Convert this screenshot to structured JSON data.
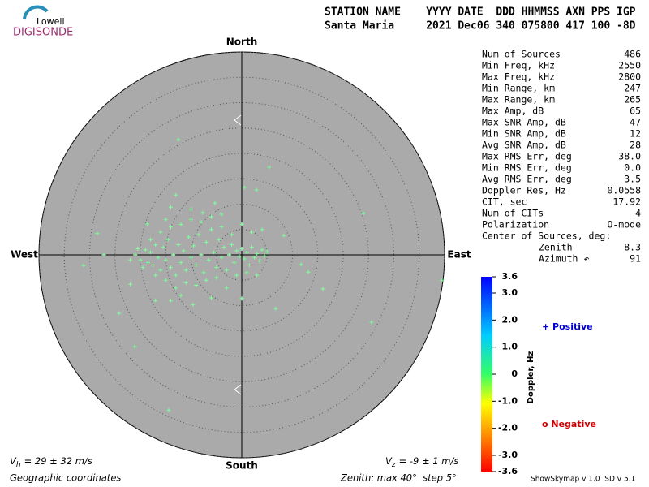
{
  "logo": {
    "top": "Lowell",
    "bottom": "DIGISONDE"
  },
  "header": {
    "line1": "STATION NAME    YYYY DATE  DDD HHMMSS AXN PPS IGP",
    "line2": "Santa Maria     2021 Dec06 340 075800 417 100 -8D"
  },
  "stats": {
    "rows": [
      [
        "Num of Sources",
        "486"
      ],
      [
        "Min Freq, kHz",
        "2550"
      ],
      [
        "Max Freq, kHz",
        "2800"
      ],
      [
        "Min Range, km",
        "247"
      ],
      [
        "Max Range, km",
        "265"
      ],
      [
        "Max Amp, dB",
        "65"
      ],
      [
        "Max SNR Amp, dB",
        "47"
      ],
      [
        "Min SNR Amp, dB",
        "12"
      ],
      [
        "Avg SNR Amp, dB",
        "28"
      ],
      [
        "Max RMS Err, deg",
        "38.0"
      ],
      [
        "Min RMS Err, deg",
        "0.0"
      ],
      [
        "Avg RMS Err, deg",
        "3.5"
      ],
      [
        "Doppler Res, Hz",
        "0.0558"
      ],
      [
        "CIT, sec",
        "17.92"
      ],
      [
        "Num of CITs",
        "4"
      ],
      [
        "Polarization",
        "O-mode"
      ]
    ],
    "center_title": "Center of Sources, deg:",
    "center_rows": [
      [
        "Zenith",
        "8.3"
      ],
      [
        "Azimuth ↶",
        "91"
      ]
    ]
  },
  "legend": {
    "positive": "+ Positive",
    "negative": "o Negative"
  },
  "footer": {
    "vh": {
      "symbol": "V",
      "sub": "h",
      "text": "= 29 ± 32 m/s"
    },
    "vz": {
      "symbol": "V",
      "sub": "z",
      "text": "= -9 ± 1 m/s"
    },
    "coords": "Geographic coordinates",
    "zenith": "Zenith: max 40°  step 5°",
    "version": "ShowSkymap v 1.0  SD v 5.1"
  },
  "chart_data": {
    "type": "skymap",
    "directions": {
      "north": "North",
      "south": "South",
      "west": "West",
      "east": "East"
    },
    "rlim": [
      0,
      40
    ],
    "rings": [
      5,
      10,
      15,
      20,
      25,
      30,
      35,
      40
    ],
    "color": "#7dff9a",
    "x": [
      -12.5,
      5.4,
      0.5,
      2.9,
      24,
      -28.5,
      -31.2,
      39.5,
      25.6,
      -24.2,
      -21.1,
      -14.4,
      0,
      16,
      11.7,
      13.1,
      -13,
      -14,
      -5.3,
      -7.7,
      -27.2,
      -18.6,
      -22,
      6.7,
      -9.6,
      -17,
      8.3,
      4,
      -19,
      -18.5,
      -18,
      -17.5,
      -17,
      -16.5,
      -16,
      -15.5,
      -15,
      -14.5,
      -14,
      -13.5,
      -13,
      -12.5,
      -12,
      -11.5,
      -11,
      -10.5,
      -10,
      -9.5,
      -9,
      -8.5,
      -8,
      -7.5,
      -7,
      -6.5,
      -6,
      -5.5,
      -5,
      -4.5,
      -4,
      -3.5,
      -3,
      -2.5,
      -2,
      -1.5,
      -1,
      -0.5,
      0,
      0.5,
      1,
      1.5,
      2,
      2.5,
      3,
      3.5,
      4,
      4.5,
      5,
      -20,
      -21,
      -22,
      -20.5,
      -19.5,
      -18,
      -17,
      -16,
      -15,
      -14,
      -13,
      -12,
      -11,
      -10,
      -9,
      -8,
      -7,
      -6,
      -5,
      -4,
      -3,
      -2,
      -1,
      0,
      1,
      2,
      3,
      -12,
      -14,
      -6,
      -4,
      -10,
      -15
    ],
    "y": [
      22.7,
      17.3,
      13.3,
      12.8,
      8.2,
      4.2,
      -2.1,
      -5,
      -13.3,
      -11.5,
      -18.1,
      -30.6,
      -8.6,
      -6.7,
      -1.9,
      -3.4,
      11.8,
      9.4,
      10.2,
      8.3,
      0,
      6.1,
      -5.8,
      -10.6,
      -9.8,
      -9,
      3.8,
      5,
      1,
      -1.5,
      0.5,
      -2,
      2,
      -0.5,
      -3,
      1.5,
      -1,
      3,
      -2.5,
      0,
      -4,
      2,
      -1.5,
      0.8,
      -3,
      3.5,
      -0.5,
      1.8,
      -2,
      4,
      0,
      -3.5,
      2.5,
      -1,
      5,
      0.5,
      -2.5,
      3,
      -0.5,
      1.5,
      -3,
      0,
      2,
      -1.5,
      0.8,
      -0.3,
      1.2,
      -0.8,
      0.5,
      -2,
      1.5,
      -0.5,
      0.2,
      -1.2,
      1,
      -0.2,
      0.6,
      -1,
      0,
      -1,
      1.2,
      -2.5,
      3,
      -4,
      4.5,
      -5,
      5.5,
      -6.5,
      6,
      -5.5,
      7,
      -6,
      6.5,
      -5,
      7.5,
      -4.5,
      5.5,
      -6.5,
      4,
      -4,
      6,
      -3.5,
      4.5,
      -4,
      -8,
      -9,
      -8.5,
      8,
      9,
      7
    ]
  },
  "colorbar": {
    "label": "Doppler, Hz",
    "lim": [
      -3.6,
      3.6
    ],
    "ticks": [
      {
        "value": 3.6,
        "label": "3.6"
      },
      {
        "value": 3,
        "label": "3.0"
      },
      {
        "value": 2,
        "label": "2.0"
      },
      {
        "value": 1,
        "label": "1.0"
      },
      0,
      {
        "value": -1,
        "label": "-1.0"
      },
      {
        "value": -2,
        "label": "-2.0"
      },
      {
        "value": -3,
        "label": "-3.0"
      },
      {
        "value": -3.6,
        "label": "-3.6"
      }
    ]
  }
}
